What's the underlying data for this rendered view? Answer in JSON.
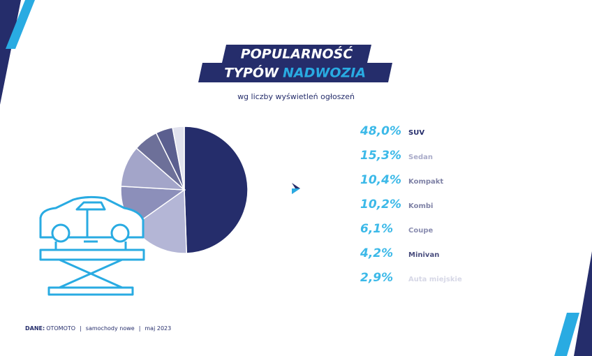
{
  "header": {
    "title_line1": "POPULARNOŚĆ",
    "title_line2a": "TYPÓW",
    "title_line2b": "NADWOZIA",
    "subtitle": "wg liczby wyświetleń ogłoszeń"
  },
  "chart_data": {
    "type": "pie",
    "categories": [
      "SUV",
      "Sedan",
      "Kompakt",
      "Kombi",
      "Coupe",
      "Minivan",
      "Auta miejskie"
    ],
    "values": [
      48.0,
      15.3,
      10.4,
      10.2,
      6.1,
      4.2,
      2.9
    ],
    "value_labels": [
      "48,0%",
      "15,3%",
      "10,4%",
      "10,2%",
      "6,1%",
      "4,2%",
      "2,9%"
    ],
    "colors": [
      "#252d6b",
      "#b4b6d6",
      "#8c8fba",
      "#a3a5c9",
      "#6d7099",
      "#5b5f8f",
      "#e1e2ee"
    ],
    "label_colors": [
      "#252d6b",
      "#a9abc9",
      "#7f82a6",
      "#7f82a6",
      "#8a8db0",
      "#4a4e7e",
      "#d6d7e6"
    ],
    "value_color": "#3cb9e8"
  },
  "footer": {
    "label": "DANE:",
    "parts": [
      "OTOMOTO",
      "samochody nowe",
      "maj 2023"
    ],
    "separator": "|"
  }
}
